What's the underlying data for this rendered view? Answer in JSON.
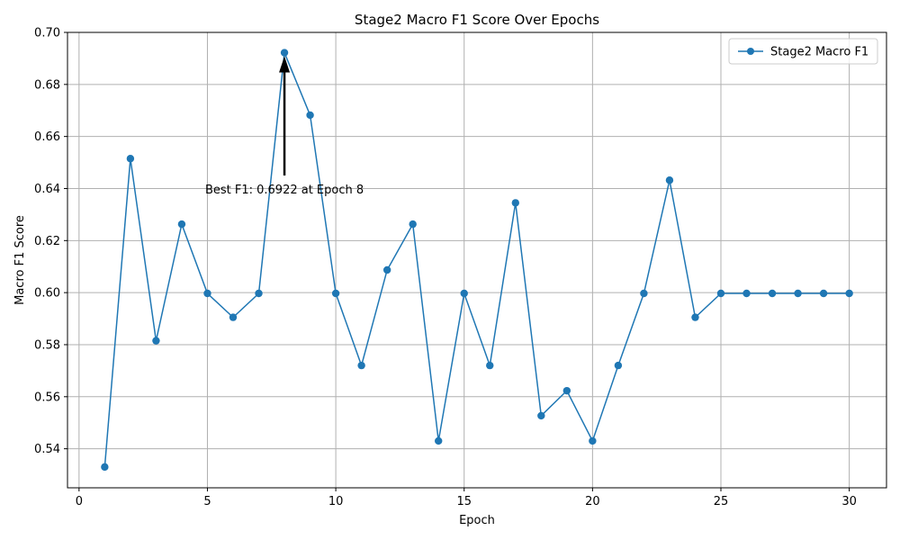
{
  "chart_data": {
    "type": "line",
    "title": "Stage2 Macro F1 Score Over Epochs",
    "xlabel": "Epoch",
    "ylabel": "Macro F1 Score",
    "xlim": [
      -0.45,
      31.45
    ],
    "ylim": [
      0.525,
      0.7
    ],
    "xticks": [
      0,
      5,
      10,
      15,
      20,
      25,
      30
    ],
    "yticks": [
      0.54,
      0.56,
      0.58,
      0.6,
      0.62,
      0.64,
      0.66,
      0.68,
      0.7
    ],
    "ytick_labels": [
      "0.54",
      "0.56",
      "0.58",
      "0.60",
      "0.62",
      "0.64",
      "0.66",
      "0.68",
      "0.70"
    ],
    "grid": true,
    "legend_position": "top-right",
    "series": [
      {
        "name": "Stage2 Macro F1",
        "color": "#1f77b4",
        "marker": "circle",
        "x": [
          1,
          2,
          3,
          4,
          5,
          6,
          7,
          8,
          9,
          10,
          11,
          12,
          13,
          14,
          15,
          16,
          17,
          18,
          19,
          20,
          21,
          22,
          23,
          24,
          25,
          26,
          27,
          28,
          29,
          30
        ],
        "values": [
          0.533,
          0.6515,
          0.5815,
          0.6263,
          0.5997,
          0.5905,
          0.5997,
          0.6922,
          0.6682,
          0.5997,
          0.572,
          0.6087,
          0.6263,
          0.543,
          0.5997,
          0.572,
          0.6345,
          0.5527,
          0.5623,
          0.543,
          0.572,
          0.5997,
          0.6432,
          0.5905,
          0.5997,
          0.5997,
          0.5997,
          0.5997,
          0.5997,
          0.5997
        ]
      }
    ],
    "annotation": {
      "text": "Best F1: 0.6922 at Epoch 8",
      "point": [
        8,
        0.6922
      ],
      "text_anchor_xy": [
        8,
        0.645
      ]
    }
  }
}
